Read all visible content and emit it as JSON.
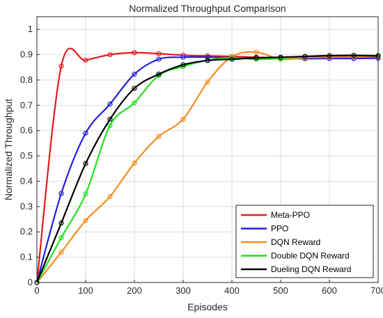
{
  "chart_data": {
    "type": "line",
    "title": "Normalized Throughput Comparison",
    "xlabel": "Episodes",
    "ylabel": "Normalized Throughput",
    "xlim": [
      0,
      700
    ],
    "ylim": [
      0,
      1.05
    ],
    "xticks": [
      0,
      100,
      200,
      300,
      400,
      500,
      600,
      700
    ],
    "yticks": [
      0,
      0.1,
      0.2,
      0.3,
      0.4,
      0.5,
      0.6,
      0.7,
      0.8,
      0.9,
      1
    ],
    "grid": true,
    "legend_position": "bottom-right",
    "x": [
      0,
      50,
      100,
      150,
      200,
      250,
      300,
      350,
      400,
      450,
      500,
      550,
      600,
      650,
      700
    ],
    "series": [
      {
        "name": "Meta-PPO",
        "color": "#e41a1c",
        "values": [
          0,
          0.855,
          0.878,
          0.9,
          0.908,
          0.904,
          0.898,
          0.895,
          0.893,
          0.89,
          0.887,
          0.888,
          0.889,
          0.89,
          0.89
        ]
      },
      {
        "name": "PPO",
        "color": "#1f1fe0",
        "values": [
          0,
          0.352,
          0.59,
          0.705,
          0.823,
          0.882,
          0.89,
          0.89,
          0.888,
          0.887,
          0.886,
          0.884,
          0.885,
          0.885,
          0.886
        ]
      },
      {
        "name": "DQN Reward",
        "color": "#f28c1e",
        "values": [
          0,
          0.12,
          0.245,
          0.34,
          0.472,
          0.577,
          0.645,
          0.792,
          0.892,
          0.91,
          0.882,
          0.888,
          0.89,
          0.891,
          0.892
        ]
      },
      {
        "name": "Double DQN Reward",
        "color": "#22e022",
        "values": [
          0,
          0.177,
          0.35,
          0.62,
          0.71,
          0.818,
          0.853,
          0.878,
          0.888,
          0.882,
          0.885,
          0.893,
          0.896,
          0.897,
          0.897
        ]
      },
      {
        "name": "Dueling DQN Reward",
        "color": "#000000",
        "values": [
          0,
          0.235,
          0.47,
          0.645,
          0.767,
          0.823,
          0.86,
          0.877,
          0.882,
          0.887,
          0.89,
          0.893,
          0.896,
          0.897,
          0.895
        ]
      }
    ]
  }
}
